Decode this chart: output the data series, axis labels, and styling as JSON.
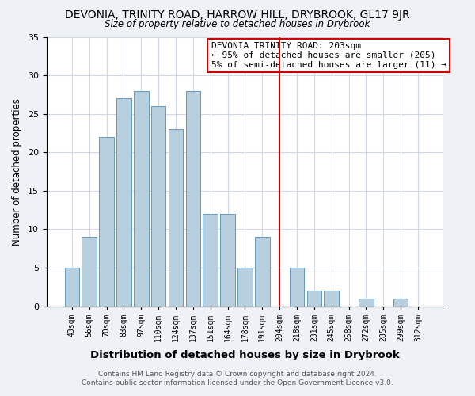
{
  "title": "DEVONIA, TRINITY ROAD, HARROW HILL, DRYBROOK, GL17 9JR",
  "subtitle": "Size of property relative to detached houses in Drybrook",
  "xlabel": "Distribution of detached houses by size in Drybrook",
  "ylabel": "Number of detached properties",
  "bar_labels": [
    "43sqm",
    "56sqm",
    "70sqm",
    "83sqm",
    "97sqm",
    "110sqm",
    "124sqm",
    "137sqm",
    "151sqm",
    "164sqm",
    "178sqm",
    "191sqm",
    "204sqm",
    "218sqm",
    "231sqm",
    "245sqm",
    "258sqm",
    "272sqm",
    "285sqm",
    "299sqm",
    "312sqm"
  ],
  "bar_heights": [
    5,
    9,
    22,
    27,
    28,
    26,
    23,
    28,
    12,
    12,
    5,
    9,
    0,
    5,
    2,
    2,
    0,
    1,
    0,
    1,
    0
  ],
  "bar_color": "#b8cfe0",
  "bar_edge_color": "#6699bb",
  "ylim": [
    0,
    35
  ],
  "yticks": [
    0,
    5,
    10,
    15,
    20,
    25,
    30,
    35
  ],
  "vline_color": "#cc0000",
  "vline_x_index": 12,
  "annotation_title": "DEVONIA TRINITY ROAD: 203sqm",
  "annotation_line1": "← 95% of detached houses are smaller (205)",
  "annotation_line2": "5% of semi-detached houses are larger (11) →",
  "footer1": "Contains HM Land Registry data © Crown copyright and database right 2024.",
  "footer2": "Contains public sector information licensed under the Open Government Licence v3.0.",
  "bg_color": "#eef2f7",
  "plot_bg_color": "#ffffff",
  "grid_color": "#d0d8e4"
}
